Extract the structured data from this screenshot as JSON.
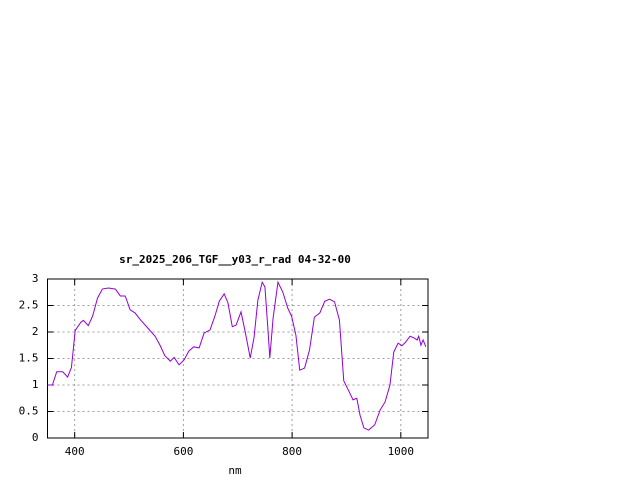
{
  "chart_data": {
    "type": "line",
    "title": "sr_2025_206_TGF__y03_r_rad 04-32-00",
    "x_label": "nm",
    "x": [
      350,
      359,
      367,
      378,
      387,
      394,
      401,
      411,
      416,
      425,
      433,
      442,
      451,
      462,
      475,
      484,
      493,
      502,
      511,
      521,
      534,
      548,
      557,
      566,
      576,
      583,
      592,
      601,
      610,
      619,
      629,
      638,
      649,
      658,
      666,
      675,
      682,
      690,
      697,
      706,
      713,
      723,
      730,
      737,
      745,
      750,
      756,
      759,
      765,
      774,
      783,
      792,
      799,
      807,
      814,
      823,
      832,
      841,
      851,
      860,
      869,
      878,
      887,
      895,
      906,
      912,
      919,
      925,
      932,
      941,
      952,
      962,
      971,
      980,
      987,
      995,
      1002,
      1009,
      1017,
      1024,
      1030,
      1033,
      1037,
      1041,
      1046
    ],
    "series": [
      {
        "color": "#9400d3",
        "values": [
          1.0,
          1.0,
          1.25,
          1.25,
          1.15,
          1.33,
          2.03,
          2.18,
          2.22,
          2.12,
          2.3,
          2.64,
          2.81,
          2.83,
          2.81,
          2.68,
          2.68,
          2.42,
          2.36,
          2.23,
          2.08,
          1.92,
          1.75,
          1.55,
          1.45,
          1.52,
          1.38,
          1.47,
          1.64,
          1.72,
          1.7,
          1.98,
          2.04,
          2.3,
          2.58,
          2.72,
          2.55,
          2.1,
          2.13,
          2.38,
          2.04,
          1.51,
          1.9,
          2.6,
          2.94,
          2.85,
          1.98,
          1.51,
          2.26,
          2.94,
          2.75,
          2.45,
          2.3,
          1.94,
          1.28,
          1.32,
          1.66,
          2.28,
          2.36,
          2.58,
          2.62,
          2.57,
          2.23,
          1.08,
          0.85,
          0.72,
          0.75,
          0.43,
          0.19,
          0.15,
          0.25,
          0.53,
          0.68,
          1.0,
          1.62,
          1.79,
          1.74,
          1.81,
          1.92,
          1.89,
          1.85,
          1.92,
          1.75,
          1.85,
          1.72
        ]
      }
    ],
    "xlim": [
      350,
      1050
    ],
    "xticks": [
      400,
      600,
      800,
      1000
    ],
    "ylim": [
      0,
      3
    ],
    "yticks": [
      0,
      0.5,
      1,
      1.5,
      2,
      2.5,
      3
    ],
    "grid": true
  }
}
